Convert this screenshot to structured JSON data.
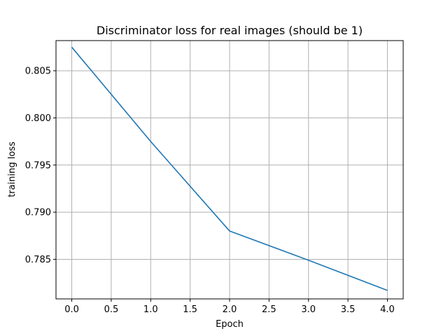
{
  "chart_data": {
    "type": "line",
    "title": "Discriminator loss for real images (should be 1)",
    "xlabel": "Epoch",
    "ylabel": "training loss",
    "xlim": [
      -0.2,
      4.2
    ],
    "ylim": [
      0.7808,
      0.8082
    ],
    "grid": true,
    "xticks": [
      0.0,
      0.5,
      1.0,
      1.5,
      2.0,
      2.5,
      3.0,
      3.5,
      4.0
    ],
    "xtick_labels": [
      "0.0",
      "0.5",
      "1.0",
      "1.5",
      "2.0",
      "2.5",
      "3.0",
      "3.5",
      "4.0"
    ],
    "yticks": [
      0.785,
      0.79,
      0.795,
      0.8,
      0.805
    ],
    "ytick_labels": [
      "0.785",
      "0.790",
      "0.795",
      "0.800",
      "0.805"
    ],
    "series": [
      {
        "color": "#1f77b4",
        "x": [
          0,
          1,
          2,
          3,
          4
        ],
        "y": [
          0.8075,
          0.7975,
          0.788,
          0.7849,
          0.7817
        ]
      }
    ]
  }
}
